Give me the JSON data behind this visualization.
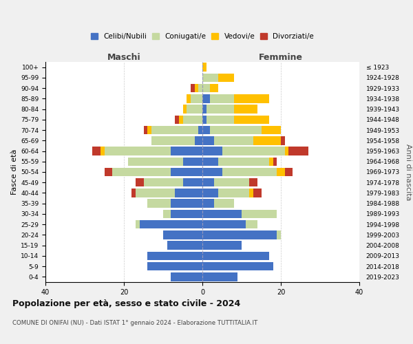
{
  "age_groups": [
    "0-4",
    "5-9",
    "10-14",
    "15-19",
    "20-24",
    "25-29",
    "30-34",
    "35-39",
    "40-44",
    "45-49",
    "50-54",
    "55-59",
    "60-64",
    "65-69",
    "70-74",
    "75-79",
    "80-84",
    "85-89",
    "90-94",
    "95-99",
    "100+"
  ],
  "birth_years": [
    "2019-2023",
    "2014-2018",
    "2009-2013",
    "2004-2008",
    "1999-2003",
    "1994-1998",
    "1989-1993",
    "1984-1988",
    "1979-1983",
    "1974-1978",
    "1969-1973",
    "1964-1968",
    "1959-1963",
    "1954-1958",
    "1949-1953",
    "1944-1948",
    "1939-1943",
    "1934-1938",
    "1929-1933",
    "1924-1928",
    "≤ 1923"
  ],
  "male": {
    "celibi": [
      8,
      14,
      14,
      9,
      10,
      16,
      8,
      8,
      7,
      5,
      8,
      5,
      8,
      2,
      1,
      0,
      0,
      0,
      0,
      0,
      0
    ],
    "coniugati": [
      0,
      0,
      0,
      0,
      0,
      1,
      2,
      6,
      10,
      10,
      15,
      14,
      17,
      11,
      12,
      5,
      4,
      3,
      1,
      0,
      0
    ],
    "vedovi": [
      0,
      0,
      0,
      0,
      0,
      0,
      0,
      0,
      0,
      0,
      0,
      0,
      1,
      0,
      1,
      1,
      1,
      1,
      1,
      0,
      0
    ],
    "divorziati": [
      0,
      0,
      0,
      0,
      0,
      0,
      0,
      0,
      1,
      2,
      2,
      0,
      2,
      0,
      1,
      1,
      0,
      0,
      1,
      0,
      0
    ]
  },
  "female": {
    "nubili": [
      9,
      18,
      17,
      10,
      19,
      11,
      10,
      3,
      4,
      3,
      5,
      4,
      5,
      3,
      2,
      1,
      1,
      2,
      0,
      0,
      0
    ],
    "coniugate": [
      0,
      0,
      0,
      0,
      1,
      3,
      9,
      5,
      8,
      9,
      14,
      13,
      16,
      10,
      13,
      7,
      7,
      6,
      2,
      4,
      0
    ],
    "vedove": [
      0,
      0,
      0,
      0,
      0,
      0,
      0,
      0,
      1,
      0,
      2,
      1,
      1,
      7,
      5,
      9,
      6,
      9,
      2,
      4,
      1
    ],
    "divorziate": [
      0,
      0,
      0,
      0,
      0,
      0,
      0,
      0,
      2,
      2,
      2,
      1,
      5,
      1,
      0,
      0,
      0,
      0,
      0,
      0,
      0
    ]
  },
  "colors": {
    "celibi_nubili": "#4472c4",
    "coniugati": "#c5d9a0",
    "vedovi": "#ffc000",
    "divorziati": "#c0392b"
  },
  "title": "Popolazione per età, sesso e stato civile - 2024",
  "subtitle": "COMUNE DI ONIFAI (NU) - Dati ISTAT 1° gennaio 2024 - Elaborazione TUTTITALIA.IT",
  "ylabel_left": "Fasce di età",
  "ylabel_right": "Anni di nascita",
  "xlabel_left": "Maschi",
  "xlabel_right": "Femmine",
  "xlim": 40,
  "xticks": [
    -40,
    -20,
    0,
    20,
    40
  ],
  "legend_labels": [
    "Celibi/Nubili",
    "Coniugati/e",
    "Vedovi/e",
    "Divorziati/e"
  ],
  "bg_color": "#f0f0f0",
  "plot_bg": "#ffffff"
}
